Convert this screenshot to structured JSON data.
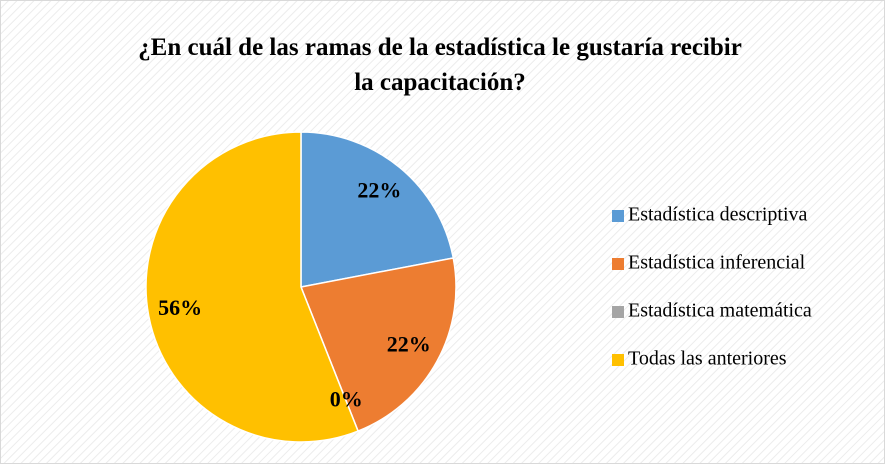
{
  "chart_data": {
    "type": "pie",
    "title": "¿En cuál de las ramas de la estadística le gustaría recibir la capacitación?",
    "categories": [
      "Estadística descriptiva",
      "Estadística inferencial",
      "Estadística matemática",
      "Todas las anteriores"
    ],
    "values": [
      22,
      22,
      0,
      56
    ],
    "value_labels": [
      "22%",
      "22%",
      "0%",
      "56%"
    ],
    "colors": [
      "#5b9bd5",
      "#ed7d31",
      "#a5a5a5",
      "#ffc000"
    ],
    "legend": "right"
  }
}
